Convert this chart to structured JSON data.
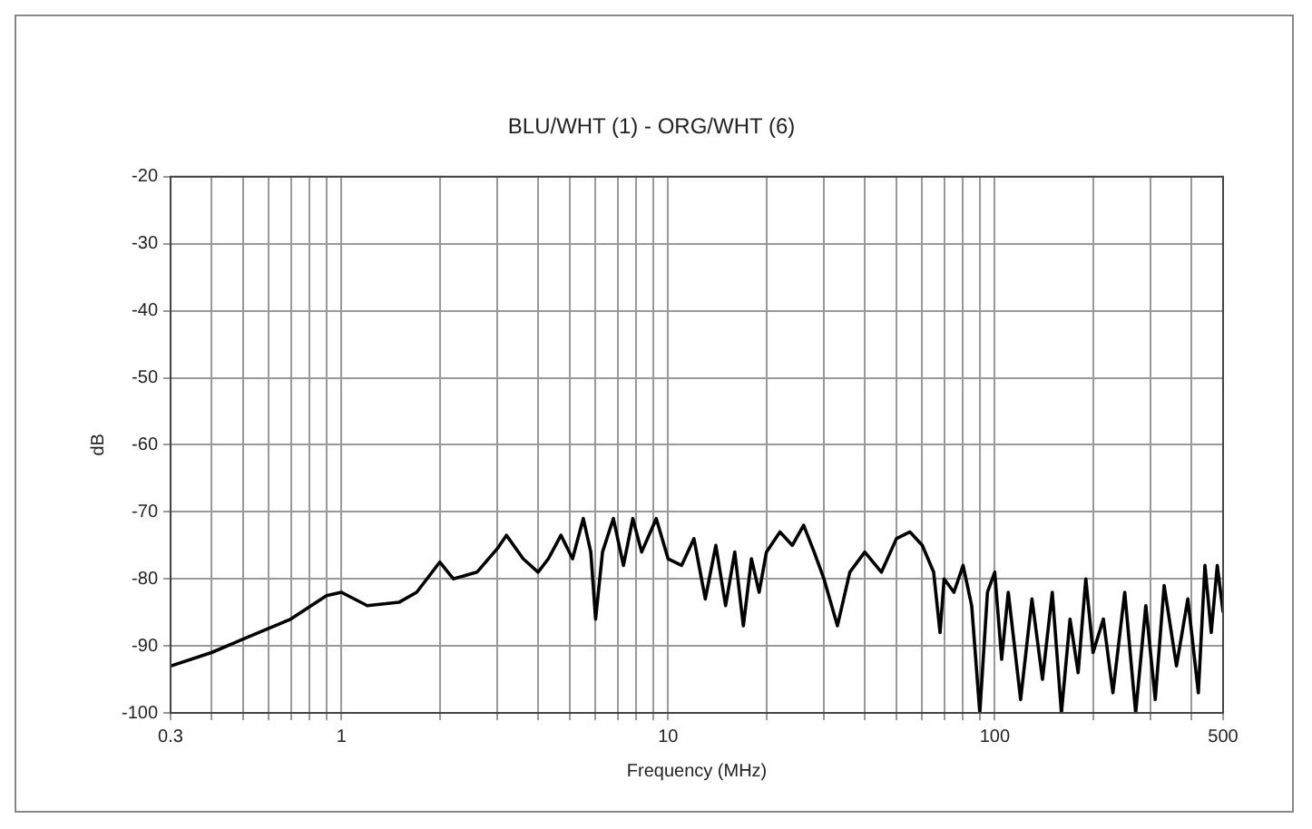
{
  "chart_data": {
    "type": "line",
    "title": "BLU/WHT (1) - ORG/WHT (6)",
    "xlabel": "Frequency (MHz)",
    "ylabel": "dB",
    "log": "x",
    "grid": true,
    "marker": "none",
    "line_style": "solid",
    "xlim": [
      0.3,
      500
    ],
    "ylim": [
      -100,
      -20
    ],
    "xticks": [
      {
        "value": 0.3,
        "label": "0.3"
      },
      {
        "value": 0.4,
        "label": null
      },
      {
        "value": 0.5,
        "label": null
      },
      {
        "value": 0.6,
        "label": null
      },
      {
        "value": 0.7,
        "label": null
      },
      {
        "value": 0.8,
        "label": null
      },
      {
        "value": 0.9,
        "label": null
      },
      1,
      {
        "value": 2,
        "label": null
      },
      {
        "value": 3,
        "label": null
      },
      {
        "value": 4,
        "label": null
      },
      {
        "value": 5,
        "label": null
      },
      {
        "value": 6,
        "label": null
      },
      {
        "value": 7,
        "label": null
      },
      {
        "value": 8,
        "label": null
      },
      {
        "value": 9,
        "label": null
      },
      10,
      {
        "value": 20,
        "label": null
      },
      {
        "value": 30,
        "label": null
      },
      {
        "value": 40,
        "label": null
      },
      {
        "value": 50,
        "label": null
      },
      {
        "value": 60,
        "label": null
      },
      {
        "value": 70,
        "label": null
      },
      {
        "value": 80,
        "label": null
      },
      {
        "value": 90,
        "label": null
      },
      100,
      {
        "value": 200,
        "label": null
      },
      {
        "value": 300,
        "label": null
      },
      {
        "value": 400,
        "label": null
      },
      500
    ],
    "yticks": [
      -100,
      -90,
      -80,
      -70,
      -60,
      -50,
      -40,
      -30,
      -20
    ],
    "series": [
      {
        "color": "#000000",
        "x": [
          0.3,
          0.4,
          0.5,
          0.7,
          0.9,
          1.0,
          1.2,
          1.5,
          1.7,
          2.0,
          2.2,
          2.6,
          3.0,
          3.2,
          3.6,
          4.0,
          4.3,
          4.7,
          5.1,
          5.5,
          5.8,
          6.0,
          6.3,
          6.8,
          7.3,
          7.8,
          8.3,
          9.2,
          10,
          11,
          12,
          13,
          14,
          15,
          16,
          17,
          18,
          19,
          20,
          22,
          24,
          26,
          28,
          30,
          33,
          36,
          40,
          45,
          50,
          55,
          60,
          65,
          68,
          70,
          75,
          80,
          85,
          90,
          95,
          100,
          105,
          110,
          120,
          130,
          140,
          150,
          160,
          170,
          180,
          190,
          200,
          215,
          230,
          250,
          270,
          290,
          310,
          330,
          360,
          390,
          420,
          440,
          460,
          480,
          500
        ],
        "values": [
          -93,
          -91,
          -89,
          -86,
          -82.5,
          -82,
          -84,
          -83.5,
          -82,
          -77.5,
          -80,
          -79,
          -75.5,
          -73.5,
          -77,
          -79,
          -77,
          -73.5,
          -77,
          -71,
          -76,
          -86,
          -76,
          -71,
          -78,
          -71,
          -76,
          -71,
          -77,
          -78,
          -74,
          -83,
          -75,
          -84,
          -76,
          -87,
          -77,
          -82,
          -76,
          -73,
          -75,
          -72,
          -76,
          -80,
          -87,
          -79,
          -76,
          -79,
          -74,
          -73,
          -75,
          -79,
          -88,
          -80,
          -82,
          -78,
          -84,
          -100,
          -82,
          -79,
          -92,
          -82,
          -98,
          -83,
          -95,
          -82,
          -100,
          -86,
          -94,
          -80,
          -91,
          -86,
          -97,
          -82,
          -100,
          -84,
          -98,
          -81,
          -93,
          -83,
          -97,
          -78,
          -88,
          -78,
          -85
        ]
      }
    ]
  }
}
